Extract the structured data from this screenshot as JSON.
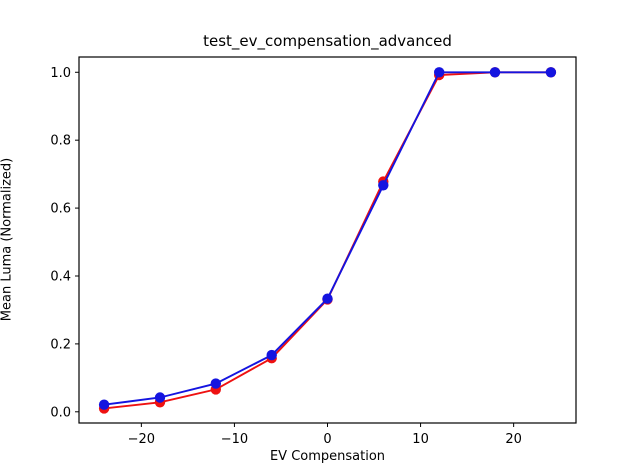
{
  "figure": {
    "background": "#ffffff",
    "axis_color": "#000000"
  },
  "chart_data": {
    "type": "line",
    "title": "test_ev_compensation_advanced",
    "xlabel": "EV Compensation",
    "ylabel": "Mean Luma (Normalized)",
    "x": [
      -24,
      -18,
      -12,
      -6,
      0,
      6,
      12,
      18,
      24
    ],
    "series": [
      {
        "name": "red-series",
        "color": "#ee1111",
        "marker": "circle",
        "values": [
          0.01,
          0.028,
          0.066,
          0.158,
          0.331,
          0.678,
          0.992,
          1.0,
          1.0
        ]
      },
      {
        "name": "blue-series",
        "color": "#1414e0",
        "marker": "circle",
        "values": [
          0.021,
          0.042,
          0.083,
          0.167,
          0.333,
          0.667,
          1.0,
          1.0,
          1.0
        ]
      }
    ],
    "x_ticks": {
      "values": [
        -20,
        -10,
        0,
        10,
        20
      ],
      "labels": [
        "−20",
        "−10",
        "0",
        "10",
        "20"
      ]
    },
    "y_ticks": {
      "values": [
        0.0,
        0.2,
        0.4,
        0.6,
        0.8,
        1.0
      ],
      "labels": [
        "0.0",
        "0.2",
        "0.4",
        "0.6",
        "0.8",
        "1.0"
      ]
    },
    "xlim": [
      -26.7,
      26.7
    ],
    "ylim": [
      -0.033,
      1.045
    ],
    "grid": false,
    "legend": "none"
  }
}
